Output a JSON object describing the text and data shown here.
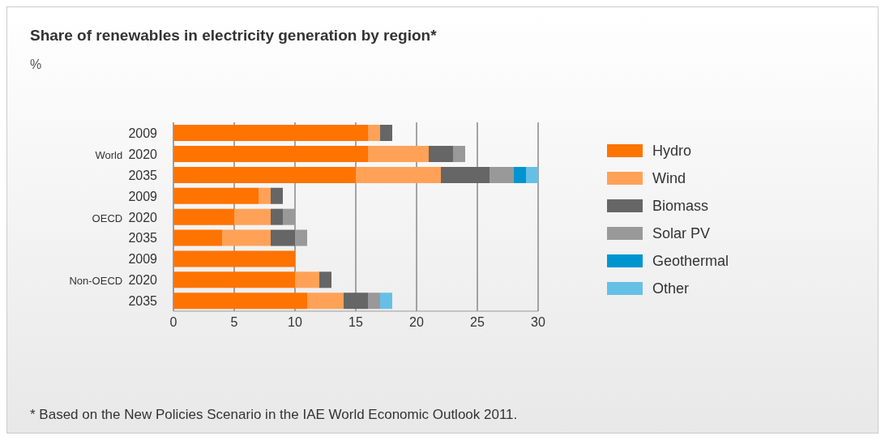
{
  "chart_data": {
    "type": "bar",
    "orientation": "horizontal",
    "stacked": true,
    "title": "Share of renewables in electricity generation by region*",
    "subtitle": "%",
    "categories": [
      "2009",
      "World 2020",
      "2035",
      "2009",
      "OECD 2020",
      "2035",
      "2009",
      "Non-OECD 2020",
      "2035"
    ],
    "series": [
      {
        "name": "Hydro",
        "color": "#ff7300",
        "values": [
          16,
          16,
          15,
          7,
          5,
          4,
          10,
          10,
          11
        ]
      },
      {
        "name": "Wind",
        "color": "#ffa257",
        "values": [
          1,
          5,
          7,
          1,
          3,
          4,
          0,
          2,
          3
        ]
      },
      {
        "name": "Biomass",
        "color": "#666666",
        "values": [
          1,
          2,
          4,
          1,
          1,
          2,
          0,
          1,
          2
        ]
      },
      {
        "name": "Solar PV",
        "color": "#999999",
        "values": [
          0,
          1,
          2,
          0,
          1,
          1,
          0,
          0,
          1
        ]
      },
      {
        "name": "Geothermal",
        "color": "#0095d0",
        "values": [
          0,
          0,
          1,
          0,
          0,
          0,
          0,
          0,
          0
        ]
      },
      {
        "name": "Other",
        "color": "#66c0e6",
        "values": [
          0,
          0,
          1,
          0,
          0,
          0,
          0,
          0,
          1
        ]
      }
    ],
    "xlim": [
      0,
      30
    ],
    "xticks": [
      0,
      5,
      10,
      15,
      20,
      25,
      30
    ],
    "grid": "x",
    "legend": "right",
    "annotations": [
      "* Based on the New Policies Scenario in the IAE World Economic Outlook 2011."
    ]
  }
}
